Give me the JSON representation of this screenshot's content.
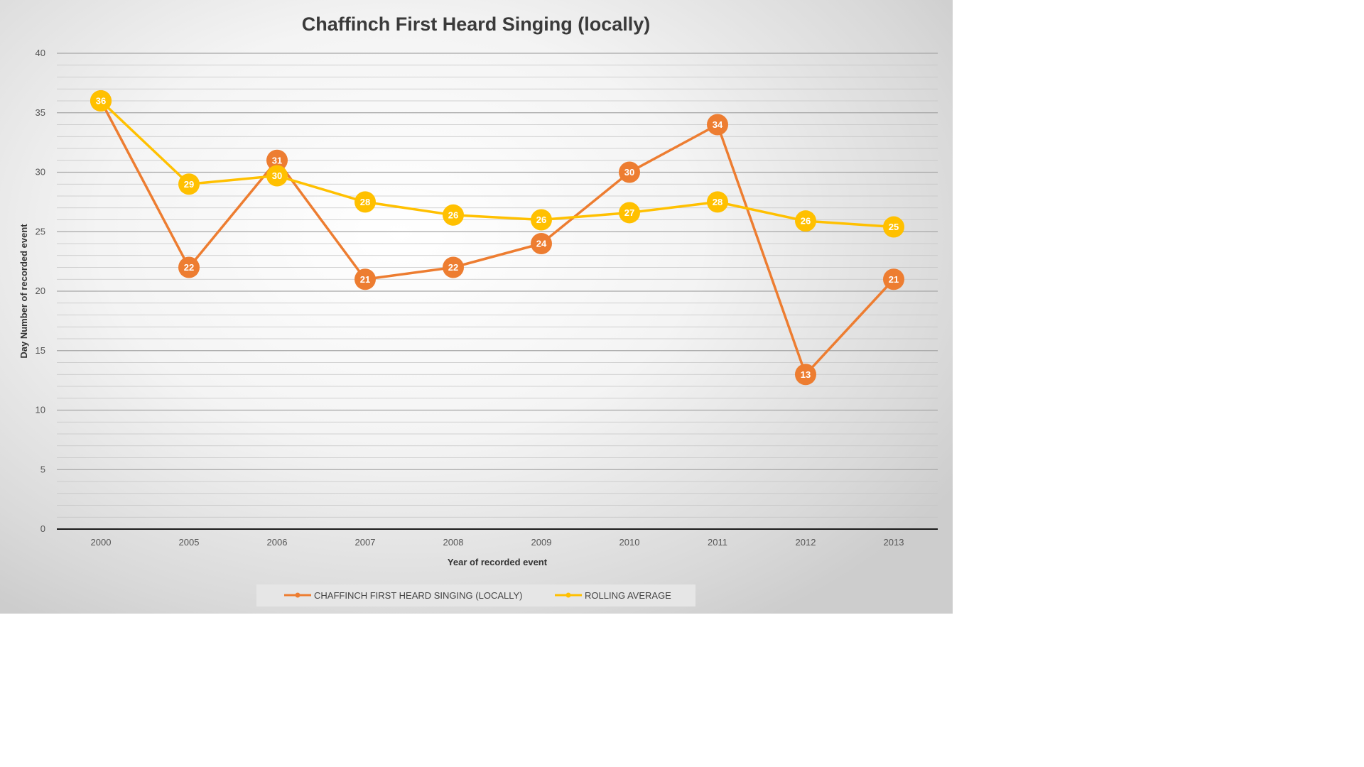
{
  "chart_data": {
    "type": "line",
    "title": "Chaffinch First Heard Singing (locally)",
    "xlabel": "Year of recorded  event",
    "ylabel": "Day Number of recorded  event",
    "categories": [
      "2000",
      "2005",
      "2006",
      "2007",
      "2008",
      "2009",
      "2010",
      "2011",
      "2012",
      "2013"
    ],
    "ylim": [
      0,
      40
    ],
    "yticks": [
      0,
      5,
      10,
      15,
      20,
      25,
      30,
      35,
      40
    ],
    "grid": true,
    "legend_position": "bottom",
    "series": [
      {
        "name": "CHAFFINCH FIRST HEARD SINGING (LOCALLY)",
        "color": "#ED7D31",
        "values": [
          36,
          22,
          31,
          21,
          22,
          24,
          30,
          34,
          13,
          21
        ],
        "labels": [
          "",
          "22",
          "31",
          "21",
          "22",
          "24",
          "30",
          "34",
          "13",
          "21"
        ]
      },
      {
        "name": "ROLLING AVERAGE",
        "color": "#FFC000",
        "values": [
          36,
          29,
          29.7,
          27.5,
          26.4,
          26,
          26.6,
          27.5,
          25.9,
          25.4
        ],
        "labels": [
          "36",
          "29",
          "30",
          "28",
          "26",
          "26",
          "27",
          "28",
          "26",
          "25"
        ]
      }
    ]
  }
}
